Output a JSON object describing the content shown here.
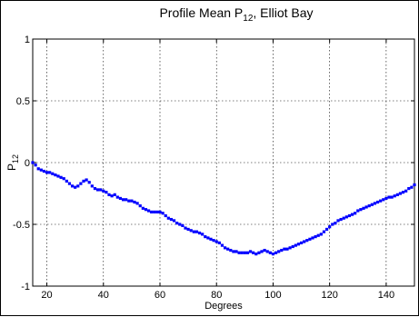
{
  "chart_data": {
    "type": "scatter",
    "title": {
      "main": "Profile Mean P",
      "sub": "12",
      "tail": ", Elliot Bay"
    },
    "xlabel": "Degrees",
    "ylabel": {
      "main": "P",
      "sub": "12"
    },
    "xlim": [
      15,
      150
    ],
    "ylim": [
      -1,
      1
    ],
    "xticks": [
      20,
      40,
      60,
      80,
      100,
      120,
      140
    ],
    "yticks": [
      -1,
      -0.5,
      0,
      0.5,
      1
    ],
    "xtick_labels": [
      "20",
      "40",
      "60",
      "80",
      "100",
      "120",
      "140"
    ],
    "ytick_labels": [
      "-1",
      "-0.5",
      "0",
      "0.5",
      "1"
    ],
    "grid": true,
    "marker_color": "#0000ff",
    "x": [
      15,
      16,
      17,
      18,
      19,
      20,
      21,
      22,
      23,
      24,
      25,
      26,
      27,
      28,
      29,
      30,
      31,
      32,
      33,
      34,
      35,
      36,
      37,
      38,
      39,
      40,
      41,
      42,
      43,
      44,
      45,
      46,
      47,
      48,
      49,
      50,
      51,
      52,
      53,
      54,
      55,
      56,
      57,
      58,
      59,
      60,
      61,
      62,
      63,
      64,
      65,
      66,
      67,
      68,
      69,
      70,
      71,
      72,
      73,
      74,
      75,
      76,
      77,
      78,
      79,
      80,
      81,
      82,
      83,
      84,
      85,
      86,
      87,
      88,
      89,
      90,
      91,
      92,
      93,
      94,
      95,
      96,
      97,
      98,
      99,
      100,
      101,
      102,
      103,
      104,
      105,
      106,
      107,
      108,
      109,
      110,
      111,
      112,
      113,
      114,
      115,
      116,
      117,
      118,
      119,
      120,
      121,
      122,
      123,
      124,
      125,
      126,
      127,
      128,
      129,
      130,
      131,
      132,
      133,
      134,
      135,
      136,
      137,
      138,
      139,
      140,
      141,
      142,
      143,
      144,
      145,
      146,
      147,
      148,
      149,
      150
    ],
    "y": [
      0.0,
      -0.02,
      -0.05,
      -0.06,
      -0.07,
      -0.08,
      -0.08,
      -0.09,
      -0.1,
      -0.11,
      -0.12,
      -0.13,
      -0.15,
      -0.17,
      -0.19,
      -0.2,
      -0.19,
      -0.17,
      -0.15,
      -0.14,
      -0.16,
      -0.19,
      -0.21,
      -0.22,
      -0.22,
      -0.23,
      -0.24,
      -0.26,
      -0.27,
      -0.26,
      -0.28,
      -0.29,
      -0.3,
      -0.3,
      -0.31,
      -0.31,
      -0.32,
      -0.33,
      -0.35,
      -0.37,
      -0.38,
      -0.39,
      -0.4,
      -0.4,
      -0.4,
      -0.4,
      -0.41,
      -0.43,
      -0.45,
      -0.46,
      -0.47,
      -0.49,
      -0.5,
      -0.51,
      -0.53,
      -0.54,
      -0.55,
      -0.56,
      -0.56,
      -0.57,
      -0.58,
      -0.6,
      -0.61,
      -0.62,
      -0.63,
      -0.64,
      -0.65,
      -0.67,
      -0.69,
      -0.7,
      -0.71,
      -0.72,
      -0.72,
      -0.73,
      -0.73,
      -0.73,
      -0.73,
      -0.72,
      -0.73,
      -0.74,
      -0.73,
      -0.72,
      -0.71,
      -0.72,
      -0.73,
      -0.74,
      -0.73,
      -0.72,
      -0.71,
      -0.7,
      -0.7,
      -0.69,
      -0.68,
      -0.67,
      -0.66,
      -0.65,
      -0.64,
      -0.63,
      -0.62,
      -0.61,
      -0.6,
      -0.59,
      -0.58,
      -0.56,
      -0.54,
      -0.52,
      -0.5,
      -0.49,
      -0.47,
      -0.46,
      -0.45,
      -0.44,
      -0.43,
      -0.42,
      -0.41,
      -0.39,
      -0.38,
      -0.37,
      -0.36,
      -0.35,
      -0.34,
      -0.33,
      -0.32,
      -0.31,
      -0.3,
      -0.29,
      -0.28,
      -0.28,
      -0.27,
      -0.26,
      -0.25,
      -0.24,
      -0.23,
      -0.21,
      -0.2,
      -0.18
    ]
  }
}
